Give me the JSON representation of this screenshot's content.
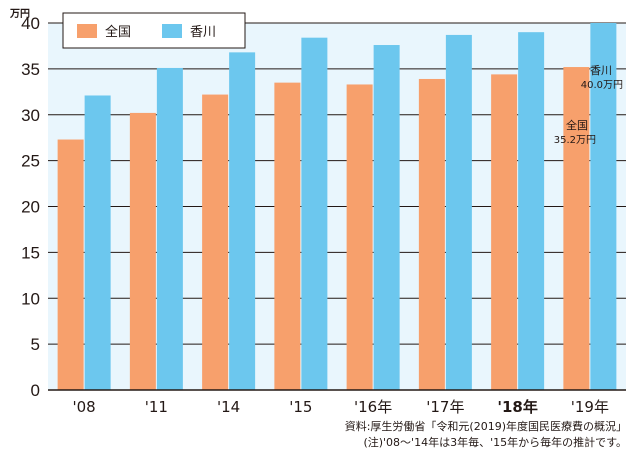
{
  "chart_data": {
    "type": "bar",
    "unit_label": "万円",
    "categories": [
      "'08",
      "'11",
      "'14",
      "'15",
      "'16年",
      "'17年",
      "'18年",
      "'19年"
    ],
    "bold_category": "'18年",
    "series": [
      {
        "name": "全国",
        "color": "#f7a06c",
        "values": [
          27.3,
          30.2,
          32.2,
          33.5,
          33.3,
          33.9,
          34.4,
          35.2
        ]
      },
      {
        "name": "香川",
        "color": "#6cc7ee",
        "values": [
          32.1,
          35.1,
          36.8,
          38.4,
          37.6,
          38.7,
          39.0,
          40.0
        ]
      }
    ],
    "ylim": [
      0,
      40
    ],
    "yticks": [
      0,
      5,
      10,
      15,
      20,
      25,
      30,
      35,
      40
    ],
    "grid": true,
    "legend": "top-left",
    "annotations": [
      {
        "series": "香川",
        "name": "香川",
        "value": "40.0万円"
      },
      {
        "series": "全国",
        "name": "全国",
        "value": "35.2万円"
      }
    ]
  },
  "source": {
    "line1": "資料:厚生労働省「令和元(2019)年度国民医療費の概況」",
    "line2": "(注)'08〜'14年は3年毎、'15年から毎年の推計です。"
  }
}
